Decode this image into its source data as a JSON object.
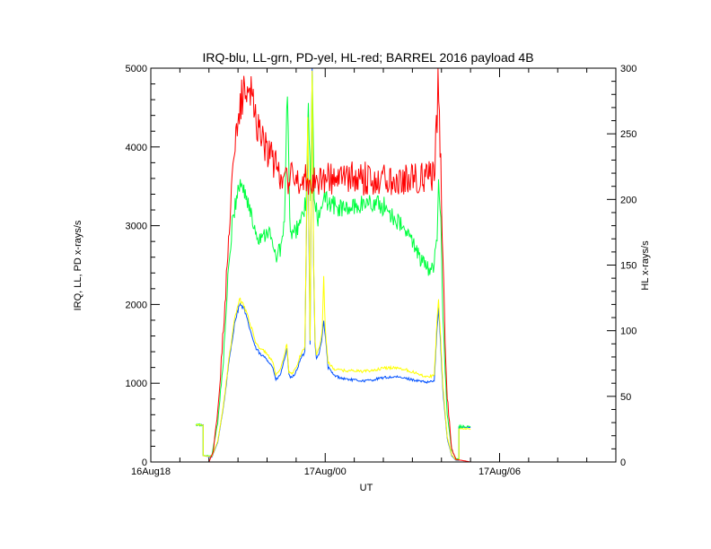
{
  "chart_data": {
    "type": "line",
    "title": "IRQ-blu, LL-grn, PD-yel, HL-red; BARREL 2016 payload 4B",
    "xlabel": "UT",
    "ylabel_left": "IRQ, LL, PD x-rays/s",
    "ylabel_right": "HL x-rays/s",
    "x_unit": "hours since 16Aug18 00:00 UT",
    "xlim": [
      0,
      16
    ],
    "x_ticks": [
      {
        "x": 0,
        "label": "16Aug18"
      },
      {
        "x": 6,
        "label": "17Aug/00"
      },
      {
        "x": 12,
        "label": "17Aug/06"
      }
    ],
    "ylim_left": [
      0,
      5000
    ],
    "y_ticks_left": [
      0,
      1000,
      2000,
      3000,
      4000,
      5000
    ],
    "ylim_right": [
      0,
      300
    ],
    "y_ticks_right": [
      0,
      50,
      100,
      150,
      200,
      250,
      300
    ],
    "grid": false,
    "series": [
      {
        "name": "IRQ",
        "color": "#0050ff",
        "axis": "left",
        "points": [
          [
            1.55,
            470
          ],
          [
            1.8,
            470
          ],
          [
            1.8,
            80
          ],
          [
            2.1,
            60
          ],
          [
            2.3,
            250
          ],
          [
            2.5,
            700
          ],
          [
            2.7,
            1300
          ],
          [
            2.9,
            1800
          ],
          [
            3.05,
            2000
          ],
          [
            3.2,
            1950
          ],
          [
            3.4,
            1700
          ],
          [
            3.6,
            1450
          ],
          [
            3.8,
            1350
          ],
          [
            3.95,
            1330
          ],
          [
            4.1,
            1250
          ],
          [
            4.2,
            1200
          ],
          [
            4.3,
            1040
          ],
          [
            4.45,
            1100
          ],
          [
            4.6,
            1300
          ],
          [
            4.68,
            1450
          ],
          [
            4.75,
            1100
          ],
          [
            4.85,
            1060
          ],
          [
            5.0,
            1150
          ],
          [
            5.15,
            1300
          ],
          [
            5.3,
            1400
          ],
          [
            5.4,
            4200
          ],
          [
            5.48,
            1500
          ],
          [
            5.55,
            5000
          ],
          [
            5.6,
            2500
          ],
          [
            5.65,
            1500
          ],
          [
            5.7,
            1300
          ],
          [
            5.8,
            1400
          ],
          [
            5.9,
            1600
          ],
          [
            5.95,
            1800
          ],
          [
            6.0,
            1600
          ],
          [
            6.1,
            1200
          ],
          [
            6.3,
            1100
          ],
          [
            6.6,
            1060
          ],
          [
            7.0,
            1040
          ],
          [
            7.3,
            1030
          ],
          [
            7.6,
            1040
          ],
          [
            8.0,
            1070
          ],
          [
            8.4,
            1080
          ],
          [
            8.8,
            1060
          ],
          [
            9.2,
            1030
          ],
          [
            9.5,
            1010
          ],
          [
            9.75,
            1030
          ],
          [
            9.85,
            1700
          ],
          [
            9.9,
            1950
          ],
          [
            9.97,
            1500
          ],
          [
            10.05,
            900
          ],
          [
            10.2,
            300
          ],
          [
            10.35,
            80
          ],
          [
            10.5,
            20
          ],
          [
            10.6,
            20
          ],
          [
            10.6,
            440
          ],
          [
            11.0,
            440
          ]
        ]
      },
      {
        "name": "LL",
        "color": "#00ff40",
        "axis": "left",
        "points": [
          [
            1.55,
            470
          ],
          [
            1.8,
            470
          ],
          [
            1.8,
            80
          ],
          [
            2.1,
            80
          ],
          [
            2.3,
            500
          ],
          [
            2.5,
            1300
          ],
          [
            2.65,
            2300
          ],
          [
            2.8,
            3000
          ],
          [
            2.95,
            3400
          ],
          [
            3.1,
            3550
          ],
          [
            3.3,
            3350
          ],
          [
            3.5,
            3050
          ],
          [
            3.7,
            2850
          ],
          [
            3.9,
            2900
          ],
          [
            4.05,
            2950
          ],
          [
            4.15,
            2800
          ],
          [
            4.3,
            2600
          ],
          [
            4.45,
            2700
          ],
          [
            4.6,
            3000
          ],
          [
            4.7,
            4800
          ],
          [
            4.78,
            3000
          ],
          [
            4.9,
            2850
          ],
          [
            5.05,
            3000
          ],
          [
            5.2,
            3100
          ],
          [
            5.35,
            3300
          ],
          [
            5.42,
            4500
          ],
          [
            5.5,
            3400
          ],
          [
            5.55,
            5000
          ],
          [
            5.62,
            3300
          ],
          [
            5.75,
            3100
          ],
          [
            5.9,
            3200
          ],
          [
            6.0,
            3350
          ],
          [
            6.3,
            3250
          ],
          [
            6.7,
            3200
          ],
          [
            7.1,
            3250
          ],
          [
            7.5,
            3300
          ],
          [
            8.0,
            3250
          ],
          [
            8.4,
            3100
          ],
          [
            8.8,
            2900
          ],
          [
            9.1,
            2750
          ],
          [
            9.3,
            2550
          ],
          [
            9.55,
            2450
          ],
          [
            9.75,
            2500
          ],
          [
            9.85,
            2900
          ],
          [
            9.9,
            3700
          ],
          [
            9.98,
            3000
          ],
          [
            10.05,
            1800
          ],
          [
            10.2,
            600
          ],
          [
            10.35,
            150
          ],
          [
            10.5,
            40
          ],
          [
            10.6,
            40
          ],
          [
            10.6,
            450
          ],
          [
            11.0,
            450
          ]
        ]
      },
      {
        "name": "PD",
        "color": "#ffff00",
        "axis": "left",
        "points": [
          [
            1.55,
            470
          ],
          [
            1.8,
            470
          ],
          [
            1.8,
            80
          ],
          [
            2.1,
            70
          ],
          [
            2.3,
            260
          ],
          [
            2.5,
            720
          ],
          [
            2.7,
            1350
          ],
          [
            2.9,
            1850
          ],
          [
            3.05,
            2060
          ],
          [
            3.2,
            2000
          ],
          [
            3.4,
            1780
          ],
          [
            3.6,
            1530
          ],
          [
            3.8,
            1420
          ],
          [
            3.95,
            1400
          ],
          [
            4.1,
            1320
          ],
          [
            4.2,
            1260
          ],
          [
            4.3,
            1100
          ],
          [
            4.45,
            1160
          ],
          [
            4.6,
            1360
          ],
          [
            4.68,
            1500
          ],
          [
            4.75,
            1150
          ],
          [
            4.85,
            1110
          ],
          [
            5.0,
            1200
          ],
          [
            5.15,
            1360
          ],
          [
            5.3,
            1460
          ],
          [
            5.4,
            4400
          ],
          [
            5.48,
            1560
          ],
          [
            5.55,
            5000
          ],
          [
            5.6,
            2600
          ],
          [
            5.65,
            1560
          ],
          [
            5.7,
            1360
          ],
          [
            5.8,
            1460
          ],
          [
            5.9,
            1680
          ],
          [
            5.95,
            2350
          ],
          [
            6.0,
            1700
          ],
          [
            6.1,
            1260
          ],
          [
            6.3,
            1180
          ],
          [
            6.6,
            1160
          ],
          [
            7.0,
            1160
          ],
          [
            7.3,
            1150
          ],
          [
            7.6,
            1160
          ],
          [
            8.0,
            1190
          ],
          [
            8.4,
            1200
          ],
          [
            8.8,
            1170
          ],
          [
            9.2,
            1120
          ],
          [
            9.5,
            1080
          ],
          [
            9.75,
            1100
          ],
          [
            9.85,
            1800
          ],
          [
            9.9,
            2050
          ],
          [
            9.97,
            1600
          ],
          [
            10.05,
            950
          ],
          [
            10.2,
            320
          ],
          [
            10.35,
            90
          ],
          [
            10.5,
            25
          ],
          [
            10.6,
            25
          ],
          [
            10.6,
            420
          ],
          [
            11.0,
            420
          ]
        ]
      },
      {
        "name": "HL",
        "color": "#ff0000",
        "axis": "right",
        "points": [
          [
            1.55,
            0
          ],
          [
            2.0,
            0
          ],
          [
            2.15,
            8
          ],
          [
            2.35,
            50
          ],
          [
            2.55,
            120
          ],
          [
            2.7,
            180
          ],
          [
            2.85,
            230
          ],
          [
            3.0,
            260
          ],
          [
            3.15,
            278
          ],
          [
            3.3,
            290
          ],
          [
            3.45,
            280
          ],
          [
            3.6,
            265
          ],
          [
            3.8,
            250
          ],
          [
            4.0,
            238
          ],
          [
            4.2,
            228
          ],
          [
            4.4,
            222
          ],
          [
            4.6,
            218
          ],
          [
            4.8,
            216
          ],
          [
            5.0,
            215
          ],
          [
            5.2,
            214
          ],
          [
            5.4,
            216
          ],
          [
            5.6,
            215
          ],
          [
            5.8,
            216
          ],
          [
            6.0,
            216
          ],
          [
            6.5,
            216
          ],
          [
            7.0,
            216
          ],
          [
            7.5,
            216
          ],
          [
            8.0,
            216
          ],
          [
            8.5,
            216
          ],
          [
            9.0,
            216
          ],
          [
            9.5,
            217
          ],
          [
            9.75,
            218
          ],
          [
            9.85,
            260
          ],
          [
            9.88,
            285
          ],
          [
            9.93,
            270
          ],
          [
            10.0,
            200
          ],
          [
            10.1,
            110
          ],
          [
            10.2,
            50
          ],
          [
            10.35,
            10
          ],
          [
            10.5,
            2
          ],
          [
            11.0,
            0
          ]
        ]
      }
    ]
  }
}
